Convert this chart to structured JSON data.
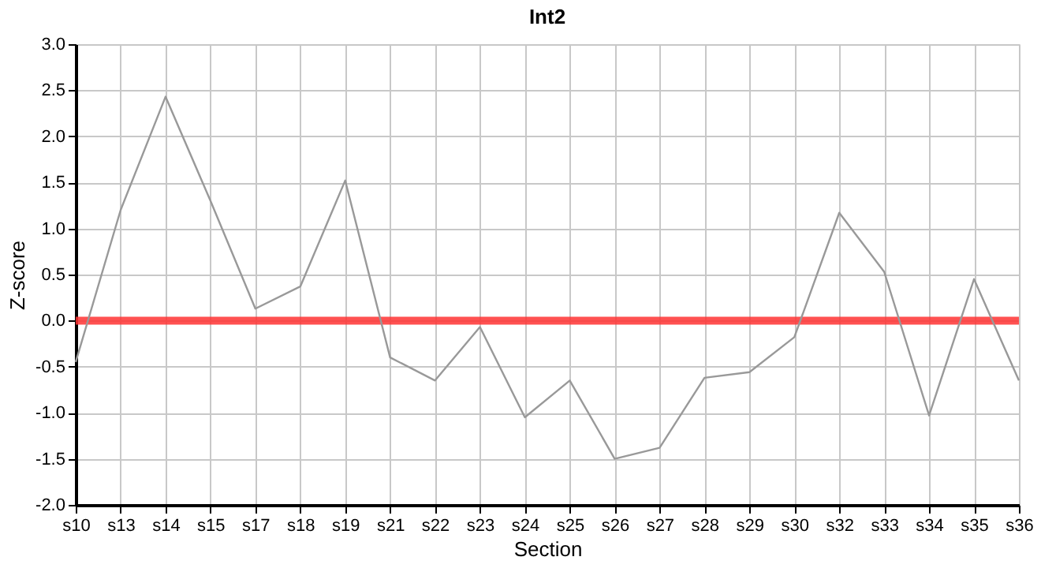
{
  "chart_data": {
    "type": "line",
    "title": "Int2",
    "xlabel": "Section",
    "ylabel": "Z-score",
    "categories": [
      "s10",
      "s13",
      "s14",
      "s15",
      "s17",
      "s18",
      "s19",
      "s21",
      "s22",
      "s23",
      "s24",
      "s25",
      "s26",
      "s27",
      "s28",
      "s29",
      "s30",
      "s32",
      "s33",
      "s34",
      "s35",
      "s36"
    ],
    "series": [
      {
        "color": "#999999",
        "values": [
          -0.45,
          1.2,
          2.43,
          1.3,
          0.13,
          0.37,
          1.52,
          -0.4,
          -0.65,
          -0.07,
          -1.05,
          -0.65,
          -1.5,
          -1.38,
          -0.62,
          -0.56,
          -0.18,
          1.17,
          0.53,
          -1.03,
          0.45,
          -0.65
        ]
      }
    ],
    "ylim": [
      -2.0,
      3.0
    ],
    "yticks": [
      {
        "value": -2,
        "label": "-2.0"
      },
      {
        "value": -1.5,
        "label": "-1.5"
      },
      {
        "value": -1,
        "label": "-1.0"
      },
      {
        "value": -0.5,
        "label": "-0.5"
      },
      {
        "value": 0,
        "label": "0.0"
      },
      {
        "value": 0.5,
        "label": "0.5"
      },
      {
        "value": 1,
        "label": "1.0"
      },
      {
        "value": 1.5,
        "label": "1.5"
      },
      {
        "value": 2,
        "label": "2.0"
      },
      {
        "value": 2.5,
        "label": "2.5"
      },
      {
        "value": 3,
        "label": "3.0"
      }
    ],
    "ref_lines": [
      {
        "axis": "y",
        "value": 0,
        "color": "#ff3333",
        "line_style": "solid"
      }
    ],
    "grid": true,
    "marker": "none",
    "line_style": "solid"
  }
}
